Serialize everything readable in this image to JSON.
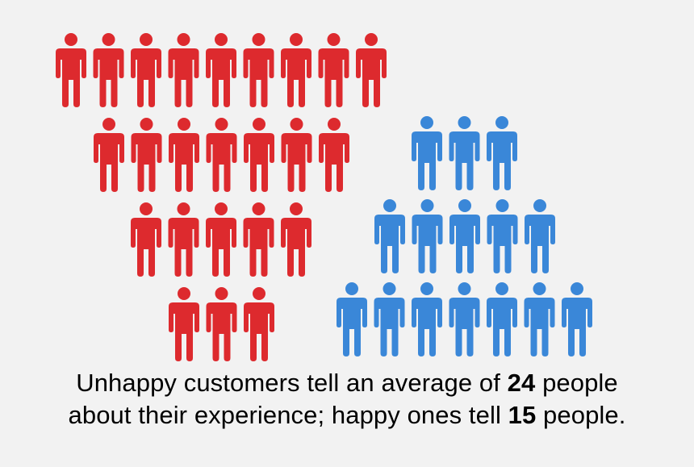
{
  "colors": {
    "unhappy": "#dd2a2e",
    "happy": "#3a87d8",
    "background": "#f2f2f2"
  },
  "icon": "person-icon",
  "groups": {
    "unhappy": {
      "count": 24,
      "row_counts": [
        9,
        7,
        5,
        3
      ]
    },
    "happy": {
      "count": 15,
      "row_counts": [
        3,
        5,
        7
      ]
    }
  },
  "caption": {
    "line1_prefix": "Unhappy customers tell an average of ",
    "line1_number": "24",
    "line1_suffix": " people",
    "line2_prefix": "about their experience; happy ones tell ",
    "line2_number": "15",
    "line2_suffix": " people."
  }
}
